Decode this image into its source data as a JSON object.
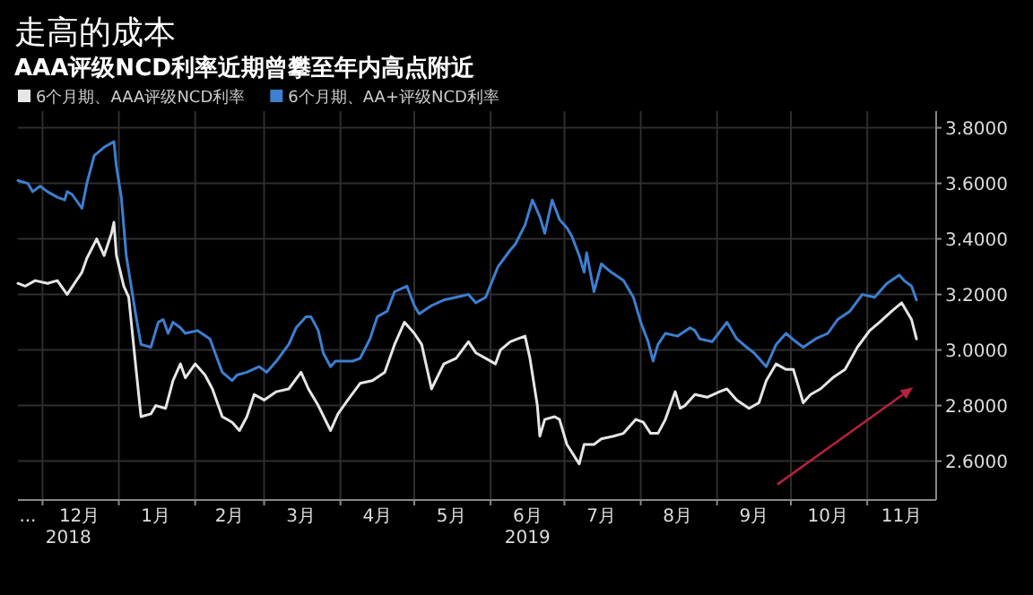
{
  "chart_data": {
    "type": "line",
    "title": "走高的成本",
    "subtitle": "AAA评级NCD利率近期曾攀至年内高点附近",
    "legend": "top left",
    "grid": true,
    "xlim": [
      "2018-11-21",
      "2019-11-29"
    ],
    "ylim": [
      2.46,
      3.86
    ],
    "xticks": [
      {
        "value": "2018-11-25",
        "label": "..."
      },
      {
        "value": "2018-12-01",
        "label": null
      },
      {
        "value": "2018-12-16",
        "label": "12月"
      },
      {
        "value": "2019-01-01",
        "label": null
      },
      {
        "value": "2019-01-16",
        "label": "1月"
      },
      {
        "value": "2019-02-01",
        "label": null
      },
      {
        "value": "2019-02-15",
        "label": "2月"
      },
      {
        "value": "2019-03-01",
        "label": null
      },
      {
        "value": "2019-03-16",
        "label": "3月"
      },
      {
        "value": "2019-04-01",
        "label": null
      },
      {
        "value": "2019-04-16",
        "label": "4月"
      },
      {
        "value": "2019-05-01",
        "label": null
      },
      {
        "value": "2019-05-16",
        "label": "5月"
      },
      {
        "value": "2019-06-01",
        "label": null
      },
      {
        "value": "2019-06-16",
        "label": "6月"
      },
      {
        "value": "2019-07-01",
        "label": null
      },
      {
        "value": "2019-07-16",
        "label": "7月"
      },
      {
        "value": "2019-08-01",
        "label": null
      },
      {
        "value": "2019-08-16",
        "label": "8月"
      },
      {
        "value": "2019-09-01",
        "label": null
      },
      {
        "value": "2019-09-16",
        "label": "9月"
      },
      {
        "value": "2019-10-01",
        "label": null
      },
      {
        "value": "2019-10-16",
        "label": "10月"
      },
      {
        "value": "2019-11-01",
        "label": null
      },
      {
        "value": "2019-11-15",
        "label": "11月"
      }
    ],
    "yticks": [
      {
        "value": 2.6,
        "label": "2.6000"
      },
      {
        "value": 2.8,
        "label": "2.8000"
      },
      {
        "value": 3.0,
        "label": "3.0000"
      },
      {
        "value": 3.2,
        "label": "3.2000"
      },
      {
        "value": 3.4,
        "label": "3.4000"
      },
      {
        "value": 3.6,
        "label": "3.6000"
      },
      {
        "value": 3.8,
        "label": "3.8000"
      }
    ],
    "annotations": [
      "2018",
      "2019"
    ],
    "series": [
      {
        "name": "6个月期、AAA评级NCD利率",
        "color": "#e6e6e6",
        "x": [
          "2018-11-21",
          "2018-11-24",
          "2018-11-28",
          "2018-12-03",
          "2018-12-07",
          "2018-12-11",
          "2018-12-14",
          "2018-12-17",
          "2018-12-19",
          "2018-12-23",
          "2018-12-26",
          "2018-12-29",
          "2018-12-30",
          "2018-12-31",
          "2019-01-03",
          "2019-01-05",
          "2019-01-08",
          "2019-01-10",
          "2019-01-14",
          "2019-01-16",
          "2019-01-20",
          "2019-01-23",
          "2019-01-26",
          "2019-01-28",
          "2019-02-01",
          "2019-02-05",
          "2019-02-08",
          "2019-02-12",
          "2019-02-16",
          "2019-02-19",
          "2019-02-22",
          "2019-02-25",
          "2019-03-01",
          "2019-03-06",
          "2019-03-11",
          "2019-03-16",
          "2019-03-19",
          "2019-03-23",
          "2019-03-28",
          "2019-03-31",
          "2019-04-04",
          "2019-04-09",
          "2019-04-14",
          "2019-04-19",
          "2019-04-23",
          "2019-04-27",
          "2019-05-01",
          "2019-05-04",
          "2019-05-08",
          "2019-05-13",
          "2019-05-18",
          "2019-05-23",
          "2019-05-26",
          "2019-05-30",
          "2019-06-03",
          "2019-06-05",
          "2019-06-09",
          "2019-06-12",
          "2019-06-15",
          "2019-06-17",
          "2019-06-20",
          "2019-06-21",
          "2019-06-23",
          "2019-06-27",
          "2019-06-29",
          "2019-07-02",
          "2019-07-07",
          "2019-07-09",
          "2019-07-13",
          "2019-07-16",
          "2019-07-21",
          "2019-07-25",
          "2019-07-30",
          "2019-08-02",
          "2019-08-05",
          "2019-08-08",
          "2019-08-11",
          "2019-08-15",
          "2019-08-17",
          "2019-08-19",
          "2019-08-23",
          "2019-08-28",
          "2019-09-02",
          "2019-09-05",
          "2019-09-09",
          "2019-09-14",
          "2019-09-18",
          "2019-09-21",
          "2019-09-25",
          "2019-09-29",
          "2019-10-02",
          "2019-10-06",
          "2019-10-09",
          "2019-10-13",
          "2019-10-18",
          "2019-10-23",
          "2019-10-28",
          "2019-11-02",
          "2019-11-06",
          "2019-11-11",
          "2019-11-15",
          "2019-11-19",
          "2019-11-21"
        ],
        "values": [
          3.24,
          3.23,
          3.25,
          3.24,
          3.25,
          3.2,
          3.24,
          3.28,
          3.33,
          3.4,
          3.34,
          3.42,
          3.46,
          3.34,
          3.23,
          3.19,
          2.93,
          2.76,
          2.77,
          2.8,
          2.79,
          2.89,
          2.95,
          2.9,
          2.95,
          2.91,
          2.86,
          2.76,
          2.74,
          2.71,
          2.76,
          2.84,
          2.82,
          2.85,
          2.86,
          2.92,
          2.86,
          2.8,
          2.71,
          2.77,
          2.82,
          2.88,
          2.89,
          2.92,
          3.02,
          3.1,
          3.06,
          3.02,
          2.86,
          2.95,
          2.97,
          3.03,
          2.99,
          2.97,
          2.95,
          3.0,
          3.03,
          3.04,
          3.05,
          2.97,
          2.8,
          2.69,
          2.75,
          2.76,
          2.75,
          2.66,
          2.59,
          2.66,
          2.66,
          2.68,
          2.69,
          2.7,
          2.75,
          2.74,
          2.7,
          2.7,
          2.75,
          2.85,
          2.79,
          2.8,
          2.84,
          2.83,
          2.85,
          2.86,
          2.82,
          2.79,
          2.81,
          2.89,
          2.95,
          2.93,
          2.93,
          2.81,
          2.84,
          2.86,
          2.9,
          2.93,
          3.01,
          3.07,
          3.1,
          3.14,
          3.17,
          3.11,
          3.04
        ]
      },
      {
        "name": "6个月期、AA+评级NCD利率",
        "color": "#3d7fd0",
        "x": [
          "2018-11-21",
          "2018-11-25",
          "2018-11-27",
          "2018-11-30",
          "2018-12-03",
          "2018-12-07",
          "2018-12-10",
          "2018-12-11",
          "2018-12-13",
          "2018-12-17",
          "2018-12-19",
          "2018-12-22",
          "2018-12-26",
          "2018-12-30",
          "2018-12-31",
          "2019-01-02",
          "2019-01-04",
          "2019-01-08",
          "2019-01-10",
          "2019-01-14",
          "2019-01-17",
          "2019-01-19",
          "2019-01-21",
          "2019-01-23",
          "2019-01-26",
          "2019-01-28",
          "2019-02-02",
          "2019-02-07",
          "2019-02-12",
          "2019-02-16",
          "2019-02-18",
          "2019-02-22",
          "2019-02-27",
          "2019-03-02",
          "2019-03-06",
          "2019-03-11",
          "2019-03-14",
          "2019-03-18",
          "2019-03-20",
          "2019-03-23",
          "2019-03-25",
          "2019-03-28",
          "2019-03-30",
          "2019-04-06",
          "2019-04-09",
          "2019-04-13",
          "2019-04-16",
          "2019-04-20",
          "2019-04-23",
          "2019-04-28",
          "2019-05-01",
          "2019-05-03",
          "2019-05-08",
          "2019-05-13",
          "2019-05-18",
          "2019-05-23",
          "2019-05-26",
          "2019-05-30",
          "2019-06-04",
          "2019-06-09",
          "2019-06-11",
          "2019-06-15",
          "2019-06-18",
          "2019-06-21",
          "2019-06-23",
          "2019-06-26",
          "2019-06-29",
          "2019-07-02",
          "2019-07-04",
          "2019-07-07",
          "2019-07-09",
          "2019-07-10",
          "2019-07-13",
          "2019-07-16",
          "2019-07-20",
          "2019-07-25",
          "2019-07-29",
          "2019-08-01",
          "2019-08-04",
          "2019-08-06",
          "2019-08-08",
          "2019-08-11",
          "2019-08-16",
          "2019-08-21",
          "2019-08-23",
          "2019-08-25",
          "2019-08-30",
          "2019-09-05",
          "2019-09-09",
          "2019-09-13",
          "2019-09-16",
          "2019-09-21",
          "2019-09-25",
          "2019-09-29",
          "2019-10-03",
          "2019-10-06",
          "2019-10-11",
          "2019-10-16",
          "2019-10-20",
          "2019-10-25",
          "2019-10-30",
          "2019-11-04",
          "2019-11-09",
          "2019-11-14",
          "2019-11-16",
          "2019-11-19",
          "2019-11-21"
        ],
        "values": [
          3.61,
          3.6,
          3.57,
          3.59,
          3.57,
          3.55,
          3.54,
          3.57,
          3.56,
          3.51,
          3.6,
          3.7,
          3.73,
          3.75,
          3.66,
          3.55,
          3.34,
          3.12,
          3.02,
          3.01,
          3.1,
          3.11,
          3.06,
          3.1,
          3.08,
          3.06,
          3.07,
          3.04,
          2.92,
          2.89,
          2.91,
          2.92,
          2.94,
          2.92,
          2.96,
          3.02,
          3.08,
          3.12,
          3.12,
          3.07,
          2.99,
          2.94,
          2.96,
          2.96,
          2.97,
          3.04,
          3.12,
          3.14,
          3.21,
          3.23,
          3.16,
          3.13,
          3.16,
          3.18,
          3.19,
          3.2,
          3.17,
          3.19,
          3.3,
          3.36,
          3.38,
          3.45,
          3.54,
          3.48,
          3.42,
          3.54,
          3.47,
          3.44,
          3.41,
          3.34,
          3.28,
          3.35,
          3.21,
          3.31,
          3.28,
          3.25,
          3.19,
          3.1,
          3.03,
          2.96,
          3.02,
          3.06,
          3.05,
          3.08,
          3.07,
          3.04,
          3.03,
          3.1,
          3.04,
          3.01,
          2.99,
          2.94,
          3.02,
          3.06,
          3.03,
          3.01,
          3.04,
          3.06,
          3.11,
          3.14,
          3.2,
          3.19,
          3.24,
          3.27,
          3.25,
          3.23,
          3.18
        ]
      }
    ]
  }
}
